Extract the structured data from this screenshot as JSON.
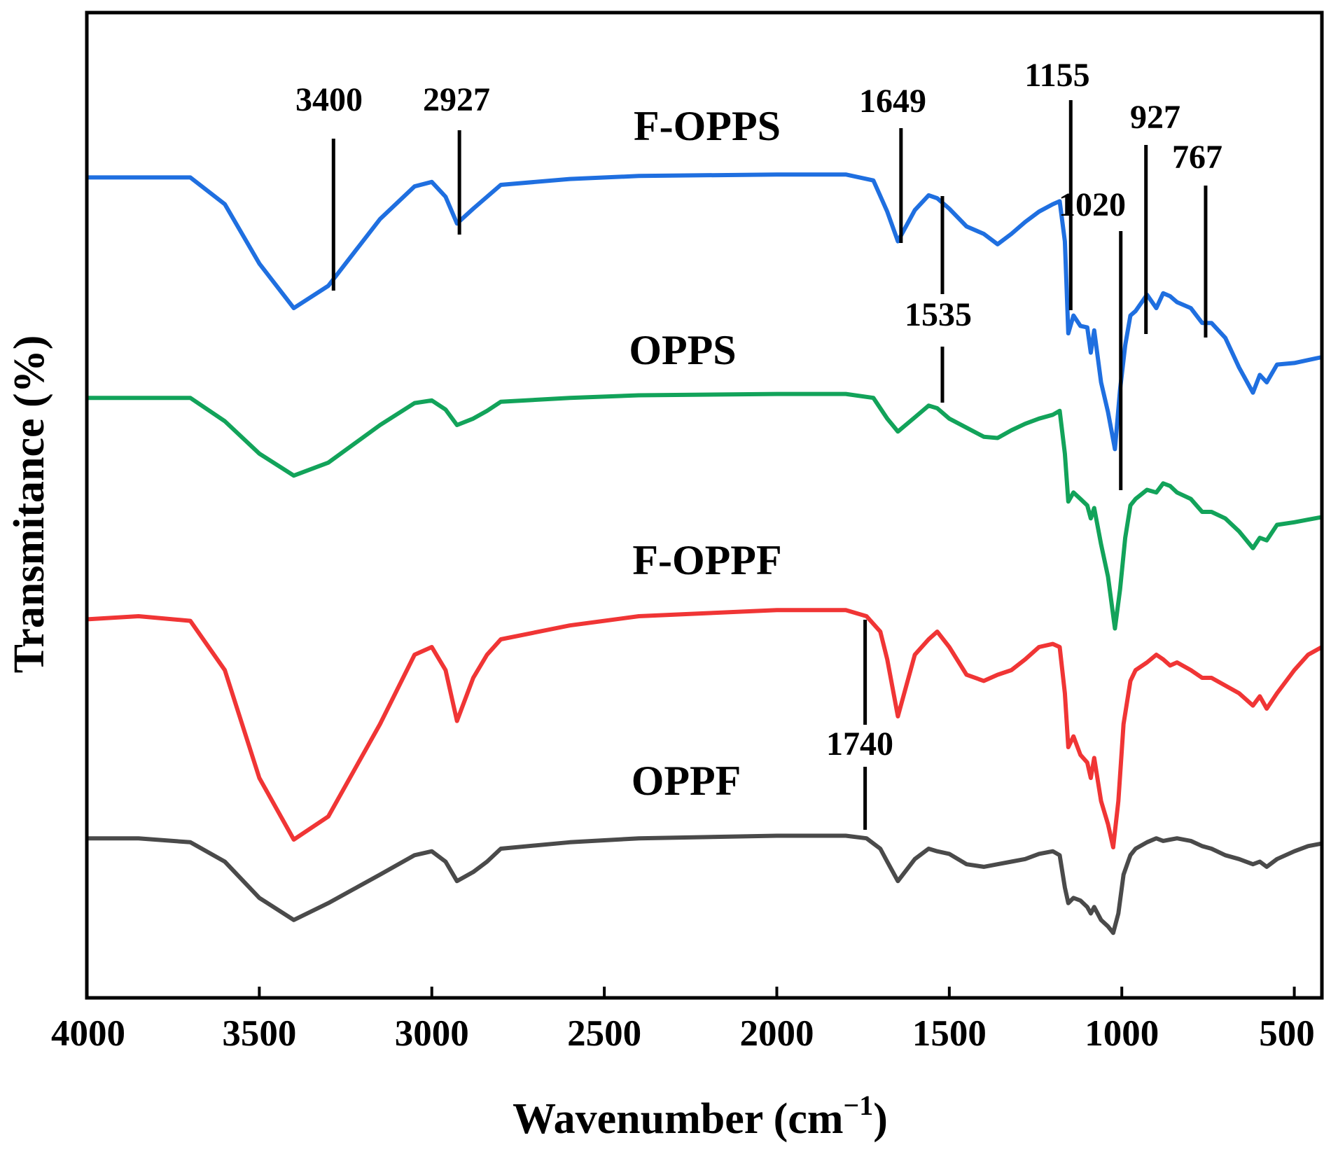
{
  "chart_data": {
    "type": "line",
    "xlabel_main": "Wavenumber (cm",
    "xlabel_sup": "−1",
    "xlabel_close": ")",
    "ylabel": "Transmitance (%)",
    "xlim": [
      4000,
      420
    ],
    "x_reversed": true,
    "xticks": [
      4000,
      3500,
      3000,
      2500,
      2000,
      1500,
      1000,
      500
    ],
    "grid": false,
    "series": [
      {
        "name": "F-OPPS",
        "color": "#1f6fe0",
        "points": [
          [
            4000,
            0.12
          ],
          [
            3850,
            0.12
          ],
          [
            3700,
            0.12
          ],
          [
            3600,
            0.3
          ],
          [
            3500,
            0.7
          ],
          [
            3400,
            1.0
          ],
          [
            3300,
            0.85
          ],
          [
            3150,
            0.4
          ],
          [
            3050,
            0.18
          ],
          [
            3000,
            0.15
          ],
          [
            2960,
            0.25
          ],
          [
            2927,
            0.43
          ],
          [
            2880,
            0.33
          ],
          [
            2840,
            0.25
          ],
          [
            2800,
            0.17
          ],
          [
            2600,
            0.13
          ],
          [
            2400,
            0.11
          ],
          [
            2000,
            0.1
          ],
          [
            1800,
            0.1
          ],
          [
            1720,
            0.14
          ],
          [
            1680,
            0.35
          ],
          [
            1649,
            0.55
          ],
          [
            1600,
            0.34
          ],
          [
            1560,
            0.24
          ],
          [
            1535,
            0.26
          ],
          [
            1500,
            0.33
          ],
          [
            1450,
            0.45
          ],
          [
            1400,
            0.5
          ],
          [
            1360,
            0.57
          ],
          [
            1320,
            0.5
          ],
          [
            1280,
            0.42
          ],
          [
            1240,
            0.35
          ],
          [
            1200,
            0.3
          ],
          [
            1180,
            0.28
          ],
          [
            1165,
            0.55
          ],
          [
            1155,
            1.17
          ],
          [
            1140,
            1.05
          ],
          [
            1120,
            1.12
          ],
          [
            1100,
            1.13
          ],
          [
            1090,
            1.3
          ],
          [
            1080,
            1.15
          ],
          [
            1060,
            1.5
          ],
          [
            1040,
            1.7
          ],
          [
            1020,
            1.95
          ],
          [
            1005,
            1.55
          ],
          [
            990,
            1.25
          ],
          [
            975,
            1.05
          ],
          [
            960,
            1.02
          ],
          [
            927,
            0.91
          ],
          [
            900,
            1.0
          ],
          [
            880,
            0.9
          ],
          [
            860,
            0.92
          ],
          [
            840,
            0.96
          ],
          [
            800,
            1.0
          ],
          [
            767,
            1.1
          ],
          [
            740,
            1.1
          ],
          [
            700,
            1.2
          ],
          [
            660,
            1.4
          ],
          [
            620,
            1.57
          ],
          [
            600,
            1.45
          ],
          [
            580,
            1.5
          ],
          [
            550,
            1.38
          ],
          [
            500,
            1.37
          ],
          [
            460,
            1.35
          ],
          [
            420,
            1.33
          ]
        ]
      },
      {
        "name": "OPPS",
        "color": "#12a35a",
        "points": [
          [
            4000,
            0.12
          ],
          [
            3850,
            0.12
          ],
          [
            3700,
            0.12
          ],
          [
            3600,
            0.3
          ],
          [
            3500,
            0.55
          ],
          [
            3400,
            0.72
          ],
          [
            3300,
            0.62
          ],
          [
            3150,
            0.33
          ],
          [
            3050,
            0.16
          ],
          [
            3000,
            0.14
          ],
          [
            2960,
            0.21
          ],
          [
            2927,
            0.33
          ],
          [
            2880,
            0.28
          ],
          [
            2840,
            0.22
          ],
          [
            2800,
            0.15
          ],
          [
            2600,
            0.12
          ],
          [
            2400,
            0.1
          ],
          [
            2000,
            0.09
          ],
          [
            1800,
            0.09
          ],
          [
            1720,
            0.12
          ],
          [
            1680,
            0.28
          ],
          [
            1649,
            0.38
          ],
          [
            1600,
            0.27
          ],
          [
            1560,
            0.18
          ],
          [
            1535,
            0.2
          ],
          [
            1500,
            0.28
          ],
          [
            1450,
            0.35
          ],
          [
            1400,
            0.42
          ],
          [
            1360,
            0.43
          ],
          [
            1320,
            0.37
          ],
          [
            1280,
            0.32
          ],
          [
            1240,
            0.28
          ],
          [
            1200,
            0.25
          ],
          [
            1180,
            0.22
          ],
          [
            1165,
            0.55
          ],
          [
            1155,
            0.92
          ],
          [
            1140,
            0.85
          ],
          [
            1120,
            0.9
          ],
          [
            1100,
            0.95
          ],
          [
            1090,
            1.05
          ],
          [
            1080,
            0.97
          ],
          [
            1060,
            1.25
          ],
          [
            1040,
            1.5
          ],
          [
            1020,
            1.9
          ],
          [
            1005,
            1.6
          ],
          [
            990,
            1.2
          ],
          [
            975,
            0.95
          ],
          [
            960,
            0.9
          ],
          [
            927,
            0.83
          ],
          [
            900,
            0.85
          ],
          [
            880,
            0.78
          ],
          [
            860,
            0.8
          ],
          [
            840,
            0.85
          ],
          [
            800,
            0.9
          ],
          [
            767,
            1.0
          ],
          [
            740,
            1.0
          ],
          [
            700,
            1.05
          ],
          [
            660,
            1.15
          ],
          [
            620,
            1.28
          ],
          [
            600,
            1.2
          ],
          [
            580,
            1.22
          ],
          [
            550,
            1.1
          ],
          [
            500,
            1.08
          ],
          [
            460,
            1.06
          ],
          [
            420,
            1.04
          ]
        ]
      },
      {
        "name": "F-OPPF",
        "color": "#f03535",
        "points": [
          [
            4000,
            0.12
          ],
          [
            3850,
            0.1
          ],
          [
            3700,
            0.13
          ],
          [
            3600,
            0.45
          ],
          [
            3500,
            1.15
          ],
          [
            3400,
            1.55
          ],
          [
            3300,
            1.4
          ],
          [
            3150,
            0.8
          ],
          [
            3050,
            0.35
          ],
          [
            3000,
            0.3
          ],
          [
            2960,
            0.45
          ],
          [
            2927,
            0.78
          ],
          [
            2880,
            0.5
          ],
          [
            2840,
            0.35
          ],
          [
            2800,
            0.25
          ],
          [
            2600,
            0.16
          ],
          [
            2400,
            0.1
          ],
          [
            2200,
            0.08
          ],
          [
            2000,
            0.06
          ],
          [
            1800,
            0.06
          ],
          [
            1740,
            0.1
          ],
          [
            1700,
            0.2
          ],
          [
            1680,
            0.38
          ],
          [
            1649,
            0.75
          ],
          [
            1600,
            0.35
          ],
          [
            1560,
            0.25
          ],
          [
            1535,
            0.2
          ],
          [
            1500,
            0.3
          ],
          [
            1450,
            0.48
          ],
          [
            1400,
            0.52
          ],
          [
            1360,
            0.48
          ],
          [
            1320,
            0.45
          ],
          [
            1280,
            0.38
          ],
          [
            1240,
            0.3
          ],
          [
            1200,
            0.28
          ],
          [
            1180,
            0.3
          ],
          [
            1165,
            0.6
          ],
          [
            1155,
            0.95
          ],
          [
            1140,
            0.88
          ],
          [
            1120,
            1.0
          ],
          [
            1100,
            1.05
          ],
          [
            1090,
            1.15
          ],
          [
            1080,
            1.02
          ],
          [
            1060,
            1.3
          ],
          [
            1040,
            1.45
          ],
          [
            1025,
            1.6
          ],
          [
            1010,
            1.3
          ],
          [
            995,
            0.8
          ],
          [
            975,
            0.52
          ],
          [
            960,
            0.45
          ],
          [
            927,
            0.4
          ],
          [
            900,
            0.35
          ],
          [
            880,
            0.38
          ],
          [
            860,
            0.42
          ],
          [
            840,
            0.4
          ],
          [
            800,
            0.45
          ],
          [
            767,
            0.5
          ],
          [
            740,
            0.5
          ],
          [
            700,
            0.55
          ],
          [
            660,
            0.6
          ],
          [
            620,
            0.68
          ],
          [
            600,
            0.62
          ],
          [
            580,
            0.7
          ],
          [
            550,
            0.6
          ],
          [
            500,
            0.45
          ],
          [
            460,
            0.35
          ],
          [
            420,
            0.3
          ]
        ]
      },
      {
        "name": "OPPF",
        "color": "#4a4a4a",
        "points": [
          [
            4000,
            0.12
          ],
          [
            3850,
            0.12
          ],
          [
            3700,
            0.15
          ],
          [
            3600,
            0.3
          ],
          [
            3500,
            0.58
          ],
          [
            3400,
            0.75
          ],
          [
            3300,
            0.62
          ],
          [
            3150,
            0.4
          ],
          [
            3050,
            0.25
          ],
          [
            3000,
            0.22
          ],
          [
            2960,
            0.3
          ],
          [
            2927,
            0.45
          ],
          [
            2880,
            0.38
          ],
          [
            2840,
            0.3
          ],
          [
            2800,
            0.2
          ],
          [
            2600,
            0.15
          ],
          [
            2400,
            0.12
          ],
          [
            2000,
            0.1
          ],
          [
            1800,
            0.1
          ],
          [
            1740,
            0.12
          ],
          [
            1700,
            0.2
          ],
          [
            1680,
            0.3
          ],
          [
            1649,
            0.45
          ],
          [
            1600,
            0.28
          ],
          [
            1560,
            0.2
          ],
          [
            1535,
            0.22
          ],
          [
            1500,
            0.24
          ],
          [
            1450,
            0.32
          ],
          [
            1400,
            0.34
          ],
          [
            1360,
            0.32
          ],
          [
            1320,
            0.3
          ],
          [
            1280,
            0.28
          ],
          [
            1240,
            0.24
          ],
          [
            1200,
            0.22
          ],
          [
            1180,
            0.25
          ],
          [
            1165,
            0.5
          ],
          [
            1155,
            0.62
          ],
          [
            1140,
            0.58
          ],
          [
            1120,
            0.6
          ],
          [
            1100,
            0.65
          ],
          [
            1090,
            0.7
          ],
          [
            1080,
            0.65
          ],
          [
            1060,
            0.75
          ],
          [
            1040,
            0.8
          ],
          [
            1025,
            0.85
          ],
          [
            1010,
            0.7
          ],
          [
            995,
            0.4
          ],
          [
            975,
            0.25
          ],
          [
            960,
            0.2
          ],
          [
            927,
            0.15
          ],
          [
            900,
            0.12
          ],
          [
            880,
            0.14
          ],
          [
            860,
            0.13
          ],
          [
            840,
            0.12
          ],
          [
            800,
            0.14
          ],
          [
            767,
            0.18
          ],
          [
            740,
            0.2
          ],
          [
            700,
            0.25
          ],
          [
            660,
            0.28
          ],
          [
            620,
            0.32
          ],
          [
            600,
            0.3
          ],
          [
            580,
            0.34
          ],
          [
            550,
            0.28
          ],
          [
            500,
            0.22
          ],
          [
            460,
            0.18
          ],
          [
            420,
            0.16
          ]
        ]
      }
    ],
    "annotations": [
      {
        "label": "3400",
        "bold": true,
        "x": 3285
      },
      {
        "label": "2927",
        "bold": true,
        "x": 2920
      },
      {
        "label": "1649",
        "bold": true,
        "x": 1640
      },
      {
        "label": "1535",
        "bold": true,
        "x": 1520
      },
      {
        "label": "1155",
        "bold": true,
        "x": 1148
      },
      {
        "label": "1020",
        "bold": true,
        "x": 1003
      },
      {
        "label": "927",
        "bold": true,
        "x": 930
      },
      {
        "label": "767",
        "bold": true,
        "x": 757
      },
      {
        "label": "1740",
        "bold": false,
        "x": 1744
      }
    ]
  }
}
